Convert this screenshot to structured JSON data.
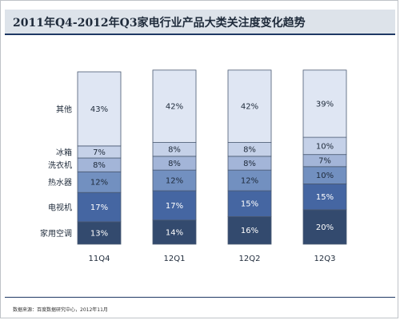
{
  "title": "2011年Q4-2012年Q3家电行业产品大类关注度变化趋势",
  "source": "数据来源：百度数据研究中心，2012年11月",
  "colors": {
    "家用空调": "#334a6e",
    "电视机": "#4566a2",
    "热水器": "#7290c0",
    "洗衣机": "#a3b5d8",
    "冰箱": "#c5d1e8",
    "其他": "#dfe6f3"
  },
  "chart_data": {
    "type": "bar",
    "stacked": true,
    "categories": [
      "11Q4",
      "12Q1",
      "12Q2",
      "12Q3"
    ],
    "series": [
      {
        "name": "家用空调",
        "values": [
          13,
          14,
          16,
          20
        ],
        "labels": [
          "13%",
          "14%",
          "16%",
          "20%"
        ]
      },
      {
        "name": "电视机",
        "values": [
          17,
          17,
          15,
          15
        ],
        "labels": [
          "17%",
          "17%",
          "15%",
          "15%"
        ]
      },
      {
        "name": "热水器",
        "values": [
          12,
          12,
          12,
          10
        ],
        "labels": [
          "12%",
          "12%",
          "12%",
          "10%"
        ]
      },
      {
        "name": "洗衣机",
        "values": [
          8,
          8,
          8,
          7
        ],
        "labels": [
          "8%",
          "8%",
          "8%",
          "7%"
        ]
      },
      {
        "name": "冰箱",
        "values": [
          7,
          8,
          8,
          10
        ],
        "labels": [
          "7%",
          "8%",
          "8%",
          "10%"
        ]
      },
      {
        "name": "其他",
        "values": [
          43,
          42,
          42,
          39
        ],
        "labels": [
          "43%",
          "42%",
          "42%",
          "39%"
        ]
      }
    ],
    "ylim": [
      0,
      100
    ],
    "grid": false,
    "legend": "left"
  }
}
